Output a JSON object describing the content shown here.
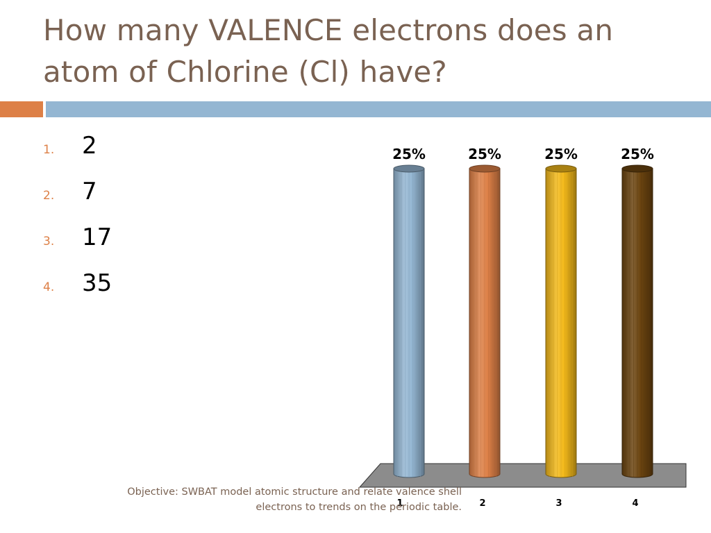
{
  "title": "How many VALENCE electrons does an atom of Chlorine (Cl) have?",
  "colors": {
    "title": "#7a6252",
    "accent_orange": "#dd8047",
    "rule_blue": "#94b6d2",
    "number_orange": "#dd8047",
    "floor": "#8c8c8c"
  },
  "options": [
    {
      "number": "1.",
      "text": "2"
    },
    {
      "number": "2.",
      "text": "7"
    },
    {
      "number": "3.",
      "text": "17"
    },
    {
      "number": "4.",
      "text": "35"
    }
  ],
  "objective": "Objective: SWBAT model atomic structure and relate valence shell electrons to trends on the periodic table.",
  "chart_data": {
    "type": "bar",
    "style": "3d-cylinder",
    "categories": [
      "1",
      "2",
      "3",
      "4"
    ],
    "values": [
      25,
      25,
      25,
      25
    ],
    "data_labels": [
      "25%",
      "25%",
      "25%",
      "25%"
    ],
    "colors": [
      "#94b6d2",
      "#dd8047",
      "#f2b81a",
      "#6b4410"
    ],
    "ylim": [
      0,
      25
    ],
    "grid": false,
    "title": "",
    "xlabel": "",
    "ylabel": ""
  }
}
